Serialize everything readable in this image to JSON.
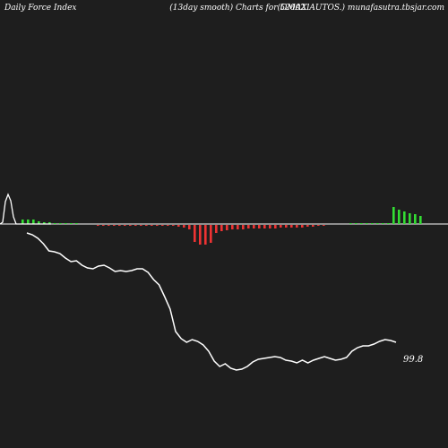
{
  "header": {
    "left": "Daily Force  Index",
    "center": "(13day smooth) Charts for 520021",
    "right": "(OMAX  AUTOS.) munafasutra.tbsjar.com"
  },
  "chart_data": {
    "type": "line",
    "colors": {
      "background": "#1e1e1e",
      "line": "#ffffff",
      "positive_bar": "#33dd33",
      "negative_bar": "#ee3333",
      "zero_line": "#ffffff"
    },
    "last_value_label": "99.8",
    "force_index": {
      "type": "bar",
      "note_units": "relative to zero line; positive up",
      "values": [
        0,
        0,
        0.5,
        0.5,
        0.5,
        0.3,
        0.2,
        0.2,
        0.1,
        0.1,
        0.1,
        0.1,
        0.1,
        0,
        0,
        0,
        -0.1,
        -0.1,
        -0.1,
        -0.1,
        -0.1,
        -0.1,
        -0.1,
        -0.1,
        -0.1,
        -0.1,
        -0.1,
        -0.1,
        -0.1,
        -0.1,
        -0.1,
        -0.2,
        -0.3,
        -0.5,
        -1.9,
        -2.2,
        -2.2,
        -2.0,
        -0.9,
        -0.7,
        -0.6,
        -0.5,
        -0.5,
        -0.5,
        -0.4,
        -0.4,
        -0.4,
        -0.4,
        -0.4,
        -0.4,
        -0.3,
        -0.3,
        -0.3,
        -0.3,
        -0.3,
        -0.2,
        -0.2,
        -0.1,
        -0.1,
        0,
        0,
        0,
        0,
        0.1,
        0.1,
        0.1,
        0.1,
        0.1,
        0.1,
        0.1,
        0.1,
        1.9,
        1.6,
        1.4,
        1.2,
        1.1,
        0.9
      ]
    },
    "force_overlay_line": [
      0,
      0.2,
      2.5,
      3.3,
      2.6,
      0.8,
      0,
      0,
      0,
      0,
      0,
      0,
      0,
      0,
      0,
      0,
      0,
      0,
      0,
      0
    ],
    "price_line": {
      "values": [
        260,
        262,
        266,
        272,
        280,
        281,
        283,
        288,
        292,
        291,
        296,
        299,
        300,
        297,
        296,
        299,
        303,
        302,
        303,
        302,
        300,
        300,
        304,
        312,
        318,
        331,
        345,
        370,
        378,
        382,
        379,
        381,
        385,
        392,
        403,
        409,
        406,
        411,
        413,
        412,
        409,
        404,
        401,
        400,
        399,
        398,
        399,
        402,
        403,
        405,
        402,
        405,
        402,
        400,
        398,
        400,
        402,
        401,
        399,
        392,
        388,
        386,
        386,
        384,
        381,
        379,
        380,
        382
      ]
    }
  }
}
